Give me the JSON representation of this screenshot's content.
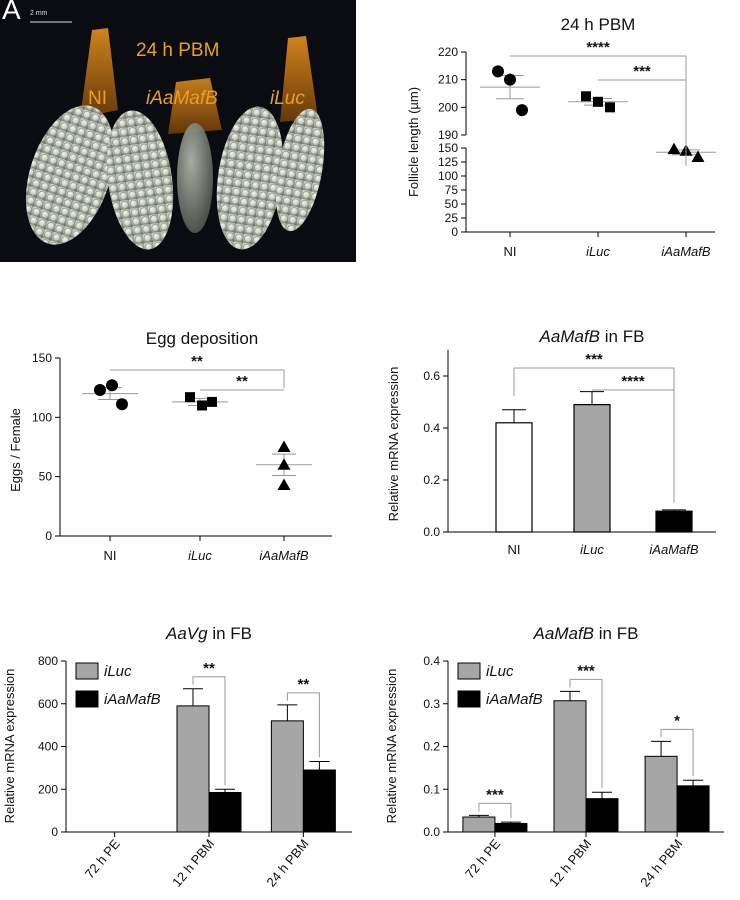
{
  "figure": {
    "panel_letter": "A",
    "photo": {
      "scale_bar_label": "2 mm",
      "title": "24 h PBM",
      "labels": [
        "NI",
        "iAaMafB",
        "iLuc"
      ],
      "background_color": "#0b0b12",
      "label_color": "#e7a21a"
    }
  },
  "chart_data": [
    {
      "id": "follicle",
      "type": "scatter",
      "title": "24 h PBM",
      "ylabel": "Follicle length (µm)",
      "categories": [
        "NI",
        "iLuc",
        "iAaMafB"
      ],
      "category_italic": [
        false,
        true,
        true
      ],
      "marker_shapes": [
        "circle",
        "square",
        "triangle"
      ],
      "broken_axis": true,
      "ylim_upper": [
        190,
        220
      ],
      "ylim_lower": [
        0,
        150
      ],
      "yticks_upper": [
        190,
        200,
        210,
        220
      ],
      "yticks_lower": [
        0,
        25,
        50,
        75,
        100,
        125,
        150
      ],
      "points": [
        [
          213,
          210,
          199
        ],
        [
          204,
          202,
          200
        ],
        [
          148,
          145,
          134
        ]
      ],
      "means": [
        207.3,
        202.0,
        142.3
      ],
      "errors": [
        4.2,
        1.2,
        4.3
      ],
      "significance": [
        {
          "from": 0,
          "to": 2,
          "label": "****"
        },
        {
          "from": 1,
          "to": 2,
          "label": "***"
        }
      ]
    },
    {
      "id": "egg",
      "type": "scatter",
      "title": "Egg deposition",
      "ylabel": "Eggs / Female",
      "categories": [
        "NI",
        "iLuc",
        "iAaMafB"
      ],
      "category_italic": [
        false,
        true,
        true
      ],
      "marker_shapes": [
        "circle",
        "square",
        "triangle"
      ],
      "ylim": [
        0,
        150
      ],
      "yticks": [
        0,
        50,
        100,
        150
      ],
      "points": [
        [
          123,
          127,
          111
        ],
        [
          117,
          110,
          113
        ],
        [
          75,
          60,
          43
        ]
      ],
      "means": [
        120,
        113,
        60
      ],
      "errors": [
        5,
        3,
        9
      ],
      "significance": [
        {
          "from": 0,
          "to": 2,
          "label": "**"
        },
        {
          "from": 1,
          "to": 2,
          "label": "**"
        }
      ]
    },
    {
      "id": "mafb",
      "type": "bar",
      "title_italic": "AaMafB",
      "title_rest": " in FB",
      "ylabel": "Relative mRNA expression",
      "categories": [
        "NI",
        "iLuc",
        "iAaMafB"
      ],
      "category_italic": [
        false,
        true,
        true
      ],
      "values": [
        0.42,
        0.49,
        0.08
      ],
      "errors": [
        0.05,
        0.05,
        0.005
      ],
      "colors": [
        "#ffffff",
        "#a6a6a6",
        "#000000"
      ],
      "ylim": [
        0,
        0.7
      ],
      "yticks": [
        "0.0",
        "0.2",
        "0.4",
        "0.6"
      ],
      "ytick_values": [
        0,
        0.2,
        0.4,
        0.6
      ],
      "significance": [
        {
          "from": 0,
          "to": 2,
          "label": "***"
        },
        {
          "from": 1,
          "to": 2,
          "label": "****"
        }
      ]
    },
    {
      "id": "vg",
      "type": "bar",
      "title_italic": "AaVg",
      "title_rest": " in FB",
      "ylabel": "Relative mRNA expression",
      "categories": [
        "72 h PE",
        "12 h PBM",
        "24 h PBM"
      ],
      "legend": [
        "iLuc",
        "iAaMafB"
      ],
      "series": [
        {
          "name": "iLuc",
          "color": "#a6a6a6",
          "values": [
            0,
            590,
            520
          ],
          "errors": [
            0,
            80,
            75
          ]
        },
        {
          "name": "iAaMafB",
          "color": "#000000",
          "values": [
            0,
            185,
            290
          ],
          "errors": [
            0,
            15,
            40
          ]
        }
      ],
      "ylim": [
        0,
        800
      ],
      "yticks": [
        "0",
        "200",
        "400",
        "600",
        "800"
      ],
      "ytick_values": [
        0,
        200,
        400,
        600,
        800
      ],
      "significance": [
        {
          "group": 1,
          "label": "**"
        },
        {
          "group": 2,
          "label": "**"
        }
      ]
    },
    {
      "id": "mafb2",
      "type": "bar",
      "title_italic": "AaMafB",
      "title_rest": " in FB",
      "ylabel": "Relative mRNA expression",
      "categories": [
        "72 h PE",
        "12 h PBM",
        "24 h PBM"
      ],
      "legend": [
        "iLuc",
        "iAaMafB"
      ],
      "series": [
        {
          "name": "iLuc",
          "color": "#a6a6a6",
          "values": [
            0.035,
            0.307,
            0.177
          ],
          "errors": [
            0.004,
            0.022,
            0.035
          ]
        },
        {
          "name": "iAaMafB",
          "color": "#000000",
          "values": [
            0.02,
            0.078,
            0.108
          ],
          "errors": [
            0.003,
            0.015,
            0.013
          ]
        }
      ],
      "ylim": [
        0,
        0.4
      ],
      "yticks": [
        "0.0",
        "0.1",
        "0.2",
        "0.3",
        "0.4"
      ],
      "ytick_values": [
        0,
        0.1,
        0.2,
        0.3,
        0.4
      ],
      "significance": [
        {
          "group": 0,
          "label": "***"
        },
        {
          "group": 1,
          "label": "***"
        },
        {
          "group": 2,
          "label": "*"
        }
      ]
    }
  ]
}
